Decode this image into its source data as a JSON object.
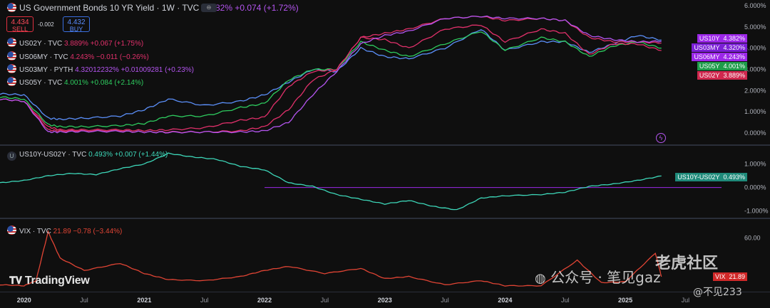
{
  "header": {
    "title": "US Government Bonds 10 YR Yield · 1W · TVC",
    "last_value": "4.382% +0.074 (+1.72%)",
    "sell_price": "4.434",
    "sell_label": "SELL",
    "spread": "-0.002",
    "buy_price": "4.432",
    "buy_label": "BUY",
    "ctrl_icon": "eye-toggle-icon"
  },
  "legend": [
    {
      "name": "US02Y · TVC",
      "value": "3.889% +0.067 (+1.75%)",
      "color": "#e0306a"
    },
    {
      "name": "US06MY · TVC",
      "value": "4.243% −0.011 (−0.26%)",
      "color": "#e0306a"
    },
    {
      "name": "US03MY · PYTH",
      "value": "4.32012232% +0.01009281 (+0.23%)",
      "color": "#b455f0"
    },
    {
      "name": "US05Y · TVC",
      "value": "4.001% +0.084 (+2.14%)",
      "color": "#2ecc5f"
    }
  ],
  "spread_legend": {
    "name": "US10Y-US02Y · TVC",
    "value": "0.493% +0.007 (+1.44%)"
  },
  "vix_legend": {
    "name": "VIX · TVC",
    "value": "21.89 −0.78 (−3.44%)"
  },
  "badges": [
    {
      "label": "US10Y",
      "value": "4.382%",
      "color": "#9c27e8"
    },
    {
      "label": "US03MY",
      "value": "4.320%",
      "color": "#7b1fd6"
    },
    {
      "label": "US06MY",
      "value": "4.243%",
      "color": "#9c27e8"
    },
    {
      "label": "US05Y",
      "value": "4.001%",
      "color": "#1e9c4a"
    },
    {
      "label": "US02Y",
      "value": "3.889%",
      "color": "#d0284e"
    }
  ],
  "spread_badge": {
    "label": "US10Y-US02Y",
    "value": "0.493%",
    "color": "#1f8a7a"
  },
  "vix_badge": {
    "label": "VIX",
    "value": "21.89",
    "color": "#d02828"
  },
  "branding": {
    "logo": "TradingView",
    "watermark_left": "公众号 · 笔见gaz",
    "watermark_right": "@不见233",
    "watermark_cn": "老虎社区"
  },
  "chart_data": [
    {
      "type": "line",
      "title": "US Government Bonds 10 YR Yield · 1W · TVC",
      "x": [
        2019.8,
        2020.0,
        2020.2,
        2020.3,
        2020.5,
        2020.8,
        2021.0,
        2021.2,
        2021.5,
        2021.8,
        2022.0,
        2022.2,
        2022.4,
        2022.6,
        2022.8,
        2023.0,
        2023.2,
        2023.5,
        2023.8,
        2024.0,
        2024.3,
        2024.5,
        2024.7,
        2024.9,
        2025.1,
        2025.3
      ],
      "ylim": [
        -0.3,
        6.0
      ],
      "y_ticks": [
        "6.000%",
        "5.000%",
        "4.000%",
        "3.000%",
        "2.000%",
        "1.000%",
        "0.000%"
      ],
      "x_ticks": [
        "2020",
        "Jul",
        "2021",
        "Jul",
        "2022",
        "Jul",
        "2023",
        "Jul",
        "2024",
        "Jul",
        "2025",
        "Jul"
      ],
      "series": [
        {
          "name": "US10Y",
          "color": "#5b8ff9",
          "values": [
            1.85,
            1.8,
            0.7,
            0.65,
            0.7,
            0.8,
            1.1,
            1.6,
            1.3,
            1.5,
            1.8,
            2.4,
            3.0,
            2.9,
            4.0,
            3.6,
            3.5,
            4.0,
            4.9,
            3.9,
            4.3,
            4.3,
            3.8,
            4.2,
            4.6,
            4.38
          ]
        },
        {
          "name": "US05Y",
          "color": "#2ecc5f",
          "values": [
            1.7,
            1.6,
            0.4,
            0.3,
            0.3,
            0.35,
            0.45,
            0.8,
            0.8,
            1.2,
            1.4,
            2.5,
            3.0,
            3.0,
            4.3,
            3.9,
            3.6,
            4.2,
            4.8,
            3.9,
            4.5,
            4.3,
            3.6,
            4.1,
            4.3,
            4.0
          ]
        },
        {
          "name": "US02Y",
          "color": "#e0306a",
          "values": [
            1.6,
            1.5,
            0.3,
            0.15,
            0.15,
            0.15,
            0.12,
            0.15,
            0.25,
            0.6,
            0.75,
            2.2,
            2.9,
            3.0,
            4.5,
            4.4,
            4.0,
            4.9,
            5.1,
            4.3,
            4.9,
            4.7,
            3.7,
            4.2,
            4.2,
            3.89
          ]
        },
        {
          "name": "US06MY",
          "color": "#e0306a",
          "values": [
            1.6,
            1.5,
            0.15,
            0.1,
            0.1,
            0.1,
            0.05,
            0.05,
            0.05,
            0.1,
            0.3,
            1.1,
            2.5,
            3.0,
            4.5,
            4.7,
            4.9,
            5.4,
            5.5,
            5.3,
            5.4,
            5.3,
            4.5,
            4.3,
            4.3,
            4.24
          ]
        },
        {
          "name": "US03MY",
          "color": "#b455f0",
          "values": [
            1.6,
            1.5,
            0.05,
            0.05,
            0.08,
            0.08,
            0.05,
            0.03,
            0.05,
            0.05,
            0.1,
            0.5,
            1.8,
            2.9,
            4.2,
            4.6,
            4.8,
            5.4,
            5.5,
            5.4,
            5.4,
            5.3,
            4.6,
            4.4,
            4.3,
            4.32
          ]
        }
      ]
    },
    {
      "type": "line",
      "title": "US10Y-US02Y · TVC",
      "x": [
        2019.8,
        2020.0,
        2020.2,
        2020.4,
        2020.6,
        2020.8,
        2021.0,
        2021.2,
        2021.4,
        2021.6,
        2021.8,
        2022.0,
        2022.2,
        2022.4,
        2022.6,
        2022.8,
        2023.0,
        2023.2,
        2023.4,
        2023.6,
        2023.8,
        2024.0,
        2024.3,
        2024.5,
        2024.7,
        2024.9,
        2025.1,
        2025.3
      ],
      "ylim": [
        -1.1,
        1.5
      ],
      "y_ticks": [
        "1.000%",
        "0.000%",
        "-1.000%"
      ],
      "series": [
        {
          "name": "US10Y-US02Y",
          "color": "#3dd6b8",
          "values": [
            0.2,
            0.3,
            0.5,
            0.6,
            0.55,
            0.8,
            1.0,
            1.45,
            1.3,
            1.2,
            0.9,
            0.75,
            0.2,
            0.05,
            -0.3,
            -0.5,
            -0.7,
            -0.55,
            -0.8,
            -0.95,
            -0.45,
            -0.35,
            -0.3,
            -0.2,
            0.05,
            0.15,
            0.3,
            0.49
          ]
        }
      ],
      "zero_line": 0.0
    },
    {
      "type": "line",
      "title": "VIX · TVC",
      "x": [
        2019.8,
        2020.0,
        2020.1,
        2020.2,
        2020.3,
        2020.5,
        2020.8,
        2021.0,
        2021.2,
        2021.5,
        2021.8,
        2022.0,
        2022.2,
        2022.5,
        2022.8,
        2023.0,
        2023.2,
        2023.5,
        2023.8,
        2024.0,
        2024.3,
        2024.6,
        2024.8,
        2025.0,
        2025.25,
        2025.3
      ],
      "ylim": [
        10,
        70
      ],
      "y_ticks": [
        "60.00"
      ],
      "series": [
        {
          "name": "VIX",
          "color": "#e04434",
          "values": [
            14,
            13,
            18,
            66,
            40,
            28,
            35,
            25,
            19,
            18,
            22,
            28,
            32,
            25,
            30,
            20,
            22,
            14,
            18,
            13,
            13,
            38,
            16,
            17,
            45,
            21.89
          ]
        }
      ]
    }
  ]
}
